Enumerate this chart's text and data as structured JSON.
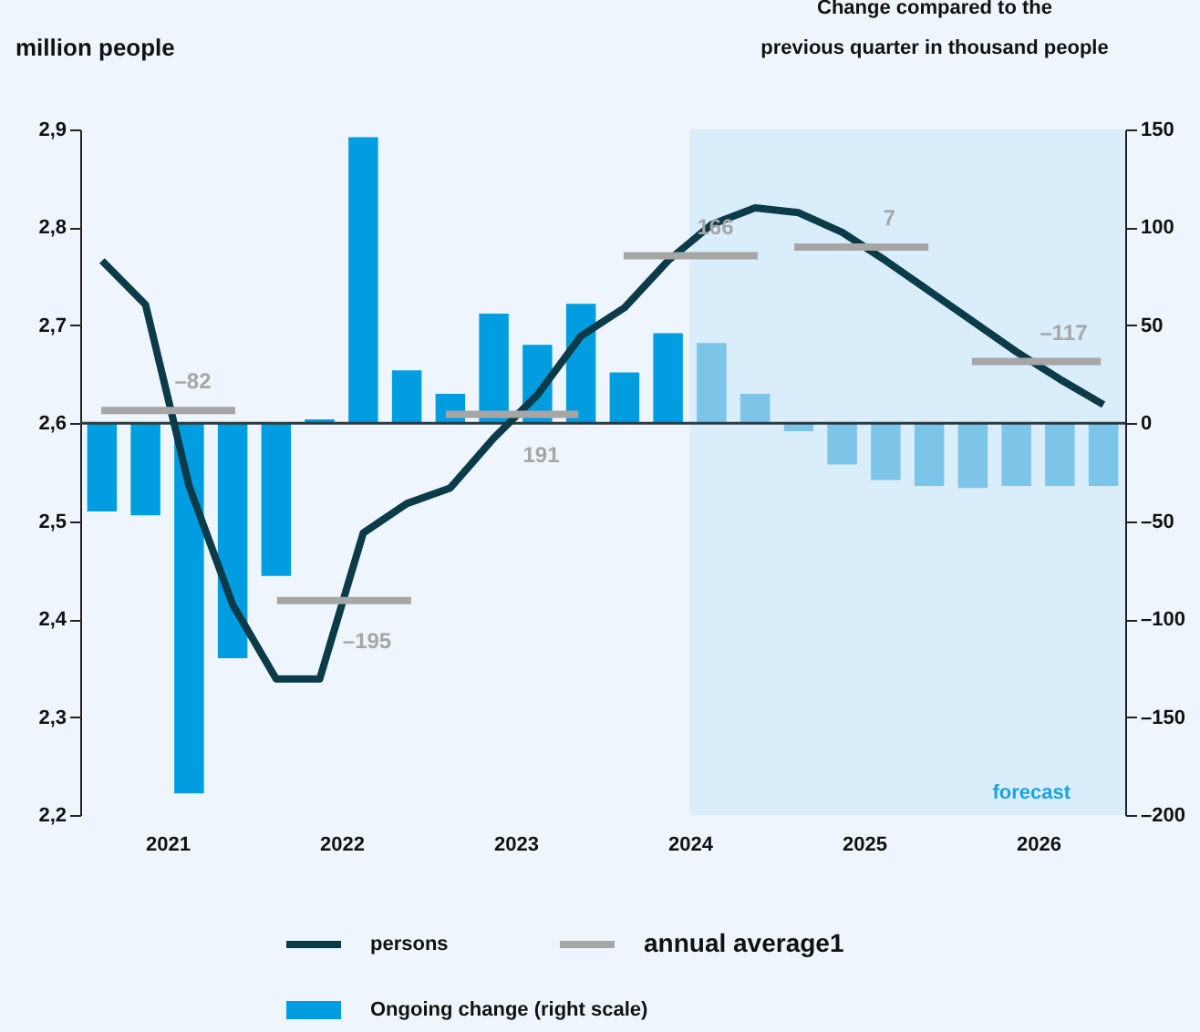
{
  "chart_data": {
    "type": "bar",
    "ylabel": "million people",
    "y2label": "Change compared to the previous quarter in thousand people",
    "x": [
      2021.125,
      2021.375,
      2021.625,
      2021.875,
      2022.125,
      2022.375,
      2022.625,
      2022.875,
      2023.125,
      2023.375,
      2023.625,
      2023.875,
      2024.125,
      2024.375,
      2024.625,
      2024.875,
      2025.125,
      2025.375,
      2025.625,
      2025.875,
      2026.125,
      2026.375,
      2026.625,
      2026.875
    ],
    "xlim": [
      2021,
      2027
    ],
    "xticks": [
      {
        "value": 2021.5,
        "label": "2021"
      },
      {
        "value": 2022.5,
        "label": "2022"
      },
      {
        "value": 2023.5,
        "label": "2023"
      },
      {
        "value": 2024.5,
        "label": "2024"
      },
      {
        "value": 2025.5,
        "label": "2025"
      },
      {
        "value": 2026.5,
        "label": "2026"
      }
    ],
    "ylim": [
      2.2,
      2.9
    ],
    "yticks": [
      {
        "value": 2.2,
        "label": "2,2"
      },
      {
        "value": 2.3,
        "label": "2,3"
      },
      {
        "value": 2.4,
        "label": "2,4"
      },
      {
        "value": 2.5,
        "label": "2,5"
      },
      {
        "value": 2.6,
        "label": "2,6"
      },
      {
        "value": 2.7,
        "label": "2,7"
      },
      {
        "value": 2.8,
        "label": "2,8"
      },
      {
        "value": 2.9,
        "label": "2,9"
      }
    ],
    "y2lim": [
      -200,
      150
    ],
    "y2ticks": [
      {
        "value": -200,
        "label": "–200"
      },
      {
        "value": -150,
        "label": "–150"
      },
      {
        "value": -100,
        "label": "–100"
      },
      {
        "value": -50,
        "label": "–50"
      },
      0,
      50,
      100,
      150
    ],
    "series": [
      {
        "name": "Ongoing change (right scale)",
        "axis": "y2",
        "color": "#009ee0",
        "colors": [
          "#009ee0",
          "#009ee0",
          "#009ee0",
          "#009ee0",
          "#009ee0",
          "#009ee0",
          "#009ee0",
          "#009ee0",
          "#009ee0",
          "#009ee0",
          "#009ee0",
          "#009ee0",
          "#009ee0",
          "#009ee0",
          "#7cc4e8",
          "#7cc4e8",
          "#7cc4e8",
          "#7cc4e8",
          "#7cc4e8",
          "#7cc4e8",
          "#7cc4e8",
          "#7cc4e8",
          "#7cc4e8",
          "#7cc4e8"
        ],
        "values": [
          -45,
          -47,
          -189,
          -120,
          -78,
          2,
          146,
          27,
          15,
          56,
          40,
          61,
          26,
          46,
          41,
          15,
          -4,
          -21,
          -29,
          -32,
          -33,
          -32,
          -32,
          -32
        ]
      },
      {
        "name": "persons",
        "type": "line",
        "color": "#0b3a48",
        "values": [
          2.766,
          2.721,
          2.536,
          2.415,
          2.339,
          2.339,
          2.488,
          2.518,
          2.534,
          2.585,
          2.629,
          2.689,
          2.718,
          2.766,
          2.803,
          2.82,
          2.815,
          2.795,
          2.766,
          2.735,
          2.704,
          2.673,
          2.645,
          2.619
        ]
      },
      {
        "name": "annual average1",
        "type": "line",
        "color": "#a6a6a6",
        "x": [
          2021.12,
          2021.5,
          2021.89,
          2022.0,
          2022.13,
          2022.5,
          2022.9,
          2023.0,
          2023.1,
          2023.5,
          2023.86,
          2024.0,
          2024.12,
          2024.5,
          2024.89,
          2025.0,
          2025.1,
          2025.5,
          2025.87,
          2026.0,
          2026.12,
          2026.5,
          2026.86
        ],
        "values": [
          2.613,
          2.613,
          2.613,
          null,
          2.419,
          2.419,
          2.419,
          null,
          2.609,
          2.609,
          2.609,
          null,
          2.771,
          2.771,
          2.771,
          null,
          2.78,
          2.78,
          2.78,
          null,
          2.663,
          2.663,
          2.663
        ]
      }
    ],
    "annotations": [
      {
        "text": "–82",
        "x": 2021.5,
        "y": 2.613
      },
      {
        "text": "–195",
        "x": 2022.5,
        "y": 2.419
      },
      {
        "text": "191",
        "x": 2023.5,
        "y": 2.609
      },
      {
        "text": "166",
        "x": 2024.5,
        "y": 2.771
      },
      {
        "text": "7",
        "x": 2025.5,
        "y": 2.78
      },
      {
        "text": "–117",
        "x": 2026.5,
        "y": 2.663
      }
    ],
    "ref_lines": [
      {
        "axis": "y2",
        "value": 0,
        "color": "#2b3a40"
      }
    ],
    "bands": [
      {
        "axis": "x",
        "from": 2024.5,
        "to": 2027,
        "label": "forecast",
        "color": "#d9edfa"
      }
    ],
    "grid": false,
    "legend": "bottom"
  }
}
